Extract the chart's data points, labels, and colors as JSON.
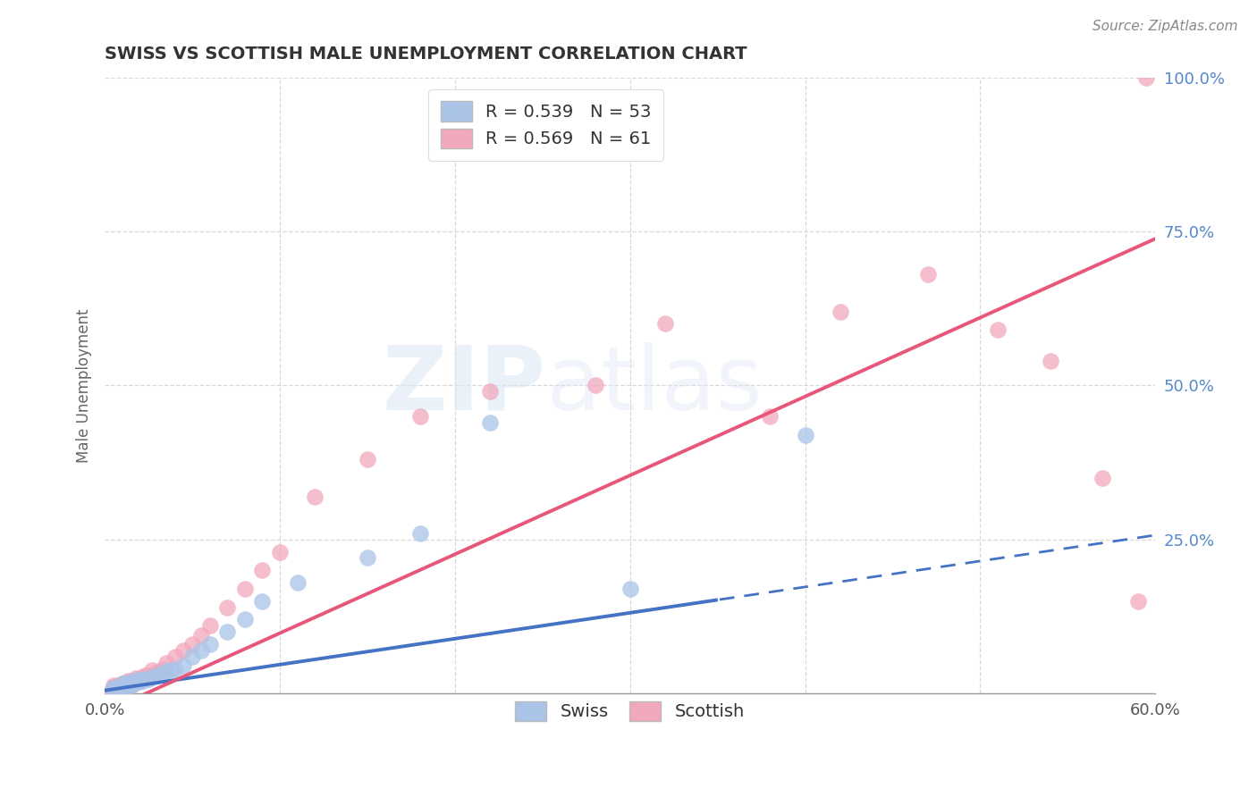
{
  "title": "SWISS VS SCOTTISH MALE UNEMPLOYMENT CORRELATION CHART",
  "source": "Source: ZipAtlas.com",
  "ylabel": "Male Unemployment",
  "xlim": [
    0.0,
    0.6
  ],
  "ylim": [
    0.0,
    1.0
  ],
  "xticks": [
    0.0,
    0.1,
    0.2,
    0.3,
    0.4,
    0.5,
    0.6
  ],
  "xticklabels": [
    "0.0%",
    "",
    "",
    "",
    "",
    "",
    "60.0%"
  ],
  "yticks": [
    0.0,
    0.25,
    0.5,
    0.75,
    1.0
  ],
  "yticklabels": [
    "",
    "25.0%",
    "50.0%",
    "75.0%",
    "100.0%"
  ],
  "swiss_color": "#aac4e8",
  "scottish_color": "#f2a8bc",
  "swiss_line_color": "#4472c4",
  "scottish_line_color": "#e8567a",
  "swiss_R": 0.539,
  "swiss_N": 53,
  "scottish_R": 0.569,
  "scottish_N": 61,
  "watermark_text": "ZIPatlas",
  "background_color": "#ffffff",
  "grid_color": "#d0d0d0",
  "swiss_line_slope": 0.42,
  "swiss_line_intercept": 0.005,
  "swiss_line_solid_end": 0.35,
  "scottish_line_slope": 1.28,
  "scottish_line_intercept": -0.03,
  "swiss_scatter_x": [
    0.005,
    0.005,
    0.005,
    0.007,
    0.007,
    0.007,
    0.008,
    0.008,
    0.009,
    0.009,
    0.01,
    0.01,
    0.01,
    0.01,
    0.011,
    0.011,
    0.012,
    0.012,
    0.013,
    0.013,
    0.014,
    0.015,
    0.015,
    0.016,
    0.016,
    0.017,
    0.018,
    0.018,
    0.019,
    0.02,
    0.021,
    0.022,
    0.023,
    0.025,
    0.027,
    0.03,
    0.033,
    0.035,
    0.038,
    0.04,
    0.045,
    0.05,
    0.055,
    0.06,
    0.07,
    0.08,
    0.09,
    0.11,
    0.15,
    0.18,
    0.22,
    0.3,
    0.4
  ],
  "swiss_scatter_y": [
    0.005,
    0.007,
    0.009,
    0.006,
    0.008,
    0.01,
    0.007,
    0.01,
    0.008,
    0.012,
    0.009,
    0.012,
    0.014,
    0.016,
    0.011,
    0.014,
    0.012,
    0.016,
    0.013,
    0.017,
    0.015,
    0.014,
    0.018,
    0.016,
    0.019,
    0.017,
    0.018,
    0.022,
    0.02,
    0.019,
    0.022,
    0.021,
    0.024,
    0.023,
    0.027,
    0.03,
    0.032,
    0.036,
    0.038,
    0.04,
    0.045,
    0.06,
    0.07,
    0.08,
    0.1,
    0.12,
    0.15,
    0.18,
    0.22,
    0.26,
    0.44,
    0.17,
    0.42
  ],
  "scottish_scatter_x": [
    0.004,
    0.005,
    0.005,
    0.005,
    0.006,
    0.006,
    0.007,
    0.007,
    0.008,
    0.008,
    0.009,
    0.009,
    0.01,
    0.01,
    0.01,
    0.011,
    0.011,
    0.012,
    0.012,
    0.013,
    0.013,
    0.014,
    0.015,
    0.015,
    0.016,
    0.017,
    0.018,
    0.018,
    0.019,
    0.02,
    0.021,
    0.022,
    0.023,
    0.025,
    0.027,
    0.03,
    0.033,
    0.035,
    0.04,
    0.045,
    0.05,
    0.055,
    0.06,
    0.07,
    0.08,
    0.09,
    0.1,
    0.12,
    0.15,
    0.18,
    0.22,
    0.28,
    0.32,
    0.38,
    0.42,
    0.47,
    0.51,
    0.54,
    0.57,
    0.59,
    0.595
  ],
  "scottish_scatter_y": [
    0.005,
    0.007,
    0.01,
    0.013,
    0.006,
    0.01,
    0.008,
    0.012,
    0.01,
    0.014,
    0.01,
    0.015,
    0.01,
    0.013,
    0.016,
    0.012,
    0.016,
    0.012,
    0.018,
    0.014,
    0.02,
    0.016,
    0.014,
    0.02,
    0.018,
    0.02,
    0.019,
    0.025,
    0.022,
    0.022,
    0.026,
    0.025,
    0.03,
    0.03,
    0.038,
    0.035,
    0.04,
    0.05,
    0.06,
    0.07,
    0.08,
    0.095,
    0.11,
    0.14,
    0.17,
    0.2,
    0.23,
    0.32,
    0.38,
    0.45,
    0.49,
    0.5,
    0.6,
    0.45,
    0.62,
    0.68,
    0.59,
    0.54,
    0.35,
    0.15,
    1.0
  ]
}
